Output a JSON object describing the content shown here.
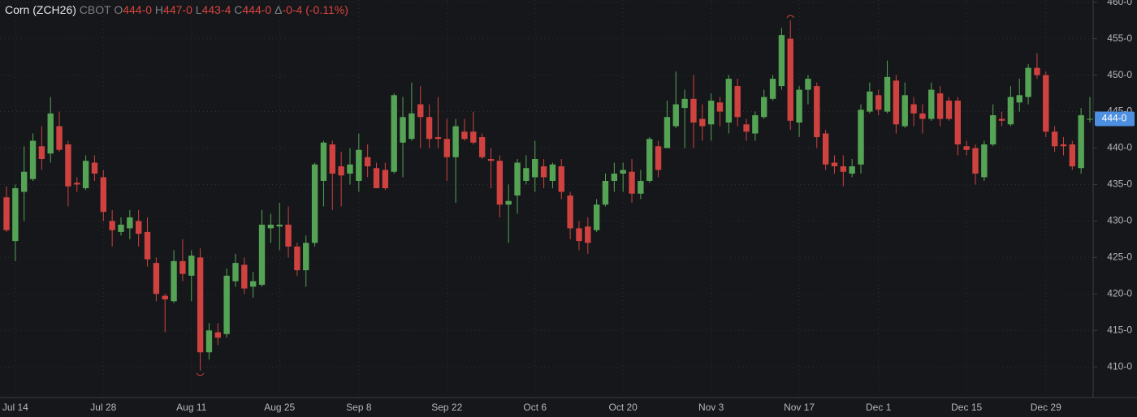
{
  "chart_data": {
    "type": "candlestick",
    "title": "Corn (ZCH26)",
    "exchange": "CBOT",
    "quote": [
      {
        "key": "O",
        "value": "444-0"
      },
      {
        "key": "H",
        "value": "447-0"
      },
      {
        "key": "L",
        "value": "443-4"
      },
      {
        "key": "C",
        "value": "444-0"
      },
      {
        "key": "Δ",
        "value": "-0-4 (-0.11%)"
      }
    ],
    "up_color": "#55a456",
    "down_color": "#cf4240",
    "grid": true,
    "last_price": {
      "value": 444,
      "label": "444-0"
    },
    "ylim": [
      405.8,
      460.3
    ],
    "yticks": [
      {
        "value": 410,
        "label": "410-0"
      },
      {
        "value": 415,
        "label": "415-0"
      },
      {
        "value": 420,
        "label": "420-0"
      },
      {
        "value": 425,
        "label": "425-0"
      },
      {
        "value": 430,
        "label": "430-0"
      },
      {
        "value": 435,
        "label": "435-0"
      },
      {
        "value": 440,
        "label": "440-0"
      },
      {
        "value": 445,
        "label": "445-0"
      },
      {
        "value": 450,
        "label": "450-0"
      },
      {
        "value": 455,
        "label": "455-0"
      },
      {
        "value": 460,
        "label": "460-0"
      }
    ],
    "categories": [
      null,
      "Jul 14",
      null,
      null,
      null,
      null,
      null,
      null,
      null,
      null,
      null,
      "Jul 28",
      null,
      null,
      null,
      null,
      null,
      null,
      null,
      null,
      null,
      "Aug 11",
      null,
      null,
      null,
      null,
      null,
      null,
      null,
      null,
      null,
      "Aug 25",
      null,
      null,
      null,
      null,
      null,
      null,
      null,
      null,
      "Sep 8",
      null,
      null,
      null,
      null,
      null,
      null,
      null,
      null,
      null,
      "Sep 22",
      null,
      null,
      null,
      null,
      null,
      null,
      null,
      null,
      null,
      "Oct 6",
      null,
      null,
      null,
      null,
      null,
      null,
      null,
      null,
      null,
      "Oct 20",
      null,
      null,
      null,
      null,
      null,
      null,
      null,
      null,
      null,
      "Nov 3",
      null,
      null,
      null,
      null,
      null,
      null,
      null,
      null,
      null,
      "Nov 17",
      null,
      null,
      null,
      null,
      null,
      null,
      null,
      null,
      "Dec 1",
      null,
      null,
      null,
      null,
      null,
      null,
      null,
      null,
      null,
      "Dec 15",
      null,
      null,
      null,
      null,
      null,
      null,
      null,
      null,
      "Dec 29",
      null,
      null,
      null,
      null,
      null
    ],
    "open": [
      433.25,
      427.25,
      434,
      435.75,
      440.25,
      439.25,
      443,
      440.5,
      435.25,
      434.5,
      438,
      436,
      430,
      428.5,
      429,
      430,
      428.5,
      424.25,
      419.75,
      419,
      424.5,
      422.5,
      425,
      412,
      414.75,
      414.5,
      421.75,
      424,
      421,
      421.25,
      429,
      429.25,
      429.5,
      426.5,
      423.25,
      427,
      435.5,
      440.5,
      437.5,
      436.5,
      435.5,
      438.75,
      437.25,
      437,
      436.75,
      440.75,
      441.25,
      446,
      444.25,
      441.5,
      441.25,
      438.75,
      442.25,
      442.25,
      441.5,
      438.5,
      438.25,
      432.25,
      433.5,
      435.5,
      436,
      437.5,
      435.5,
      437.5,
      433.5,
      429,
      429.25,
      428.75,
      432.25,
      435.5,
      436.5,
      436.75,
      433.75,
      435.5,
      440.25,
      440,
      443,
      445.5,
      446.75,
      444,
      443.25,
      446.25,
      443.5,
      448.5,
      443.25,
      442,
      444.25,
      446.75,
      448.5,
      455,
      443.5,
      448,
      448.5,
      442,
      438,
      437.5,
      436.5,
      437.75,
      445,
      447.25,
      445,
      449.25,
      443,
      446,
      444.75,
      444,
      447.5,
      446.5,
      446.5,
      440.25,
      440,
      436,
      440.5,
      444,
      443.25,
      446.25,
      447,
      451,
      450,
      442.25,
      440.5,
      440.5,
      437.25,
      444
    ],
    "high": [
      434.75,
      435,
      440.25,
      442,
      443,
      447,
      445,
      441,
      436,
      439,
      439,
      437,
      431.5,
      430.5,
      431.5,
      431.5,
      430.5,
      425,
      420,
      426,
      427.5,
      426,
      426.25,
      416,
      416,
      423.5,
      425.5,
      425,
      423,
      431.5,
      431,
      432.5,
      432,
      427,
      428,
      438,
      441,
      441,
      439.5,
      440,
      442,
      440.5,
      438,
      438,
      447.5,
      447,
      449,
      448.5,
      446,
      447,
      444,
      444,
      444,
      445,
      442,
      440,
      439,
      435,
      438.5,
      439,
      441,
      438.5,
      438,
      438.5,
      434,
      430,
      430.5,
      433,
      436.5,
      438,
      438,
      438.5,
      437,
      441.5,
      441,
      446.5,
      450.5,
      448,
      450,
      446,
      447.5,
      447,
      450,
      449.5,
      444,
      445,
      448,
      450,
      456.5,
      457.5,
      448.5,
      450,
      449,
      442.5,
      439,
      439,
      438.5,
      446,
      449,
      448,
      452,
      450,
      449,
      447,
      446,
      449,
      448.5,
      447,
      447,
      441,
      440.5,
      441,
      446,
      445,
      448.5,
      449.5,
      451.5,
      453,
      450.5,
      443,
      441.5,
      441,
      445.5,
      447
    ],
    "low": [
      428.5,
      424.5,
      430,
      435.5,
      437,
      438,
      439.5,
      432,
      434,
      434.25,
      435.5,
      430,
      426.5,
      428,
      427.5,
      426.5,
      423.75,
      419,
      414.75,
      418.75,
      421.75,
      419,
      409.5,
      411,
      413,
      414,
      421,
      420,
      419.5,
      421,
      427,
      426,
      425,
      422.5,
      421,
      426.5,
      432,
      431.5,
      432,
      435,
      434,
      436,
      434.5,
      434.25,
      436.5,
      436,
      441,
      440,
      440,
      440,
      435.5,
      432.5,
      441,
      440.5,
      438.5,
      434.5,
      430.5,
      427,
      431,
      435,
      434,
      434.5,
      434.5,
      433,
      427.5,
      426,
      425.5,
      428.5,
      432,
      434,
      434,
      432.5,
      433,
      435.25,
      436,
      440,
      442.75,
      440,
      440,
      441,
      441,
      443,
      442,
      443,
      441,
      441,
      444,
      446.5,
      448,
      442.5,
      441.5,
      446,
      440,
      437,
      436.5,
      434.75,
      436,
      436.5,
      444.75,
      444.5,
      444.75,
      442,
      442.75,
      443,
      442,
      443.75,
      443,
      443.75,
      439,
      439,
      435,
      435.5,
      440.25,
      443,
      443,
      445,
      446,
      449.5,
      441.5,
      439.5,
      439,
      437,
      436.5,
      443.5
    ],
    "close": [
      428.75,
      434.5,
      436.75,
      441,
      438.5,
      444.75,
      439.75,
      434.75,
      435,
      438.25,
      436.5,
      431.25,
      428.75,
      429.5,
      430.5,
      428.25,
      424.75,
      420,
      419.25,
      424.5,
      422.75,
      425.25,
      412,
      415,
      414,
      422.5,
      424.25,
      420.75,
      421.75,
      429.5,
      429.5,
      429.5,
      426.5,
      423.25,
      427,
      437.75,
      440.75,
      436.5,
      436.25,
      437.75,
      439.75,
      437.5,
      434.5,
      434.5,
      447.25,
      444.25,
      444.75,
      444.25,
      441.25,
      441.25,
      438.75,
      443,
      441.25,
      440.75,
      438.75,
      438.25,
      432.25,
      432.75,
      438,
      437.25,
      438.5,
      436,
      437.75,
      434,
      429,
      427.25,
      427,
      432.25,
      435.5,
      436.5,
      437,
      433.75,
      435.5,
      441.25,
      437,
      444.25,
      446,
      446.75,
      443.5,
      443,
      446.5,
      445,
      449.5,
      444.25,
      442.25,
      444.5,
      447,
      449.5,
      455.5,
      443.75,
      448,
      449.5,
      441.5,
      437.75,
      437.5,
      436.75,
      437.5,
      445.25,
      447.75,
      445.25,
      449.75,
      443.25,
      447.25,
      444.75,
      444,
      448,
      444,
      444,
      440.5,
      439.75,
      436.5,
      440.5,
      444.5,
      443.75,
      447,
      447.25,
      451,
      450,
      442.25,
      440.25,
      440.25,
      437.5,
      444.5,
      444
    ]
  }
}
